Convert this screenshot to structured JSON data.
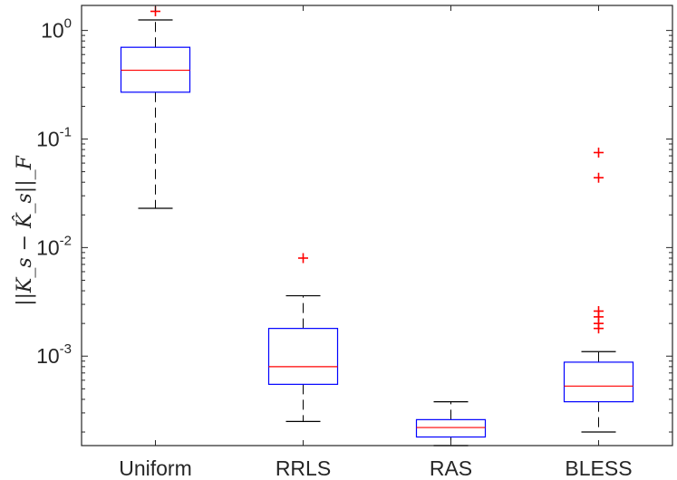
{
  "chart_data": {
    "type": "box",
    "title": "",
    "xlabel": "",
    "ylabel": "||K_s − K̂_s||_F",
    "yscale": "log",
    "ylim": [
      0.00015,
      1.7
    ],
    "yticks": [
      {
        "value": 1,
        "base": "10",
        "exp": "0"
      },
      {
        "value": 0.1,
        "base": "10",
        "exp": "-1"
      },
      {
        "value": 0.01,
        "base": "10",
        "exp": "-2"
      },
      {
        "value": 0.001,
        "base": "10",
        "exp": "-3"
      }
    ],
    "categories": [
      "Uniform",
      "RRLS",
      "RAS",
      "BLESS"
    ],
    "boxes": [
      {
        "name": "Uniform",
        "whisker_low": 0.023,
        "q1": 0.27,
        "median": 0.43,
        "q3": 0.7,
        "whisker_high": 1.25,
        "outliers": [
          1.5
        ]
      },
      {
        "name": "RRLS",
        "whisker_low": 0.00025,
        "q1": 0.00055,
        "median": 0.0008,
        "q3": 0.0018,
        "whisker_high": 0.0036,
        "outliers": [
          0.008
        ]
      },
      {
        "name": "RAS",
        "whisker_low": 0.00015,
        "q1": 0.00018,
        "median": 0.00022,
        "q3": 0.00026,
        "whisker_high": 0.00038,
        "outliers": []
      },
      {
        "name": "BLESS",
        "whisker_low": 0.0002,
        "q1": 0.00038,
        "median": 0.00053,
        "q3": 0.00088,
        "whisker_high": 0.0011,
        "outliers": [
          0.075,
          0.044,
          0.0026,
          0.0023,
          0.002,
          0.0018
        ]
      }
    ],
    "colors": {
      "box": "#0000ff",
      "median": "#ff0000",
      "whisker": "#000000",
      "outlier": "#ff0000",
      "axis": "#262626"
    },
    "grid": false,
    "legend": "none"
  }
}
